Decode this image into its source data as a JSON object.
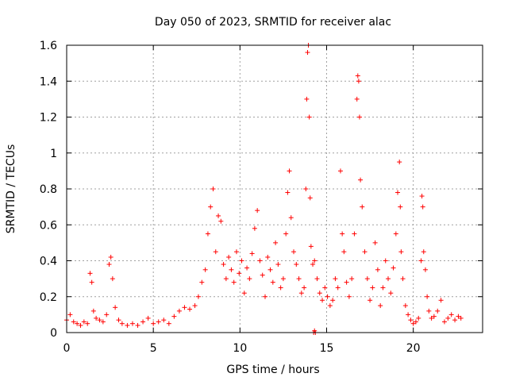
{
  "chart_data": {
    "type": "scatter",
    "title": "Day 050 of 2023, SRMTID for receiver alac",
    "xlabel": "GPS time / hours",
    "ylabel": "SRMTID / TECUs",
    "xlim": [
      0,
      24
    ],
    "ylim": [
      0,
      1.6
    ],
    "x_ticks": [
      0,
      5,
      10,
      15,
      20
    ],
    "x_tick_labels": [
      "0",
      "5",
      "10",
      "15",
      "20"
    ],
    "y_ticks": [
      0,
      0.2,
      0.4,
      0.6,
      0.8,
      1.0,
      1.2,
      1.4,
      1.6
    ],
    "y_tick_labels": [
      "0",
      "0.2",
      "0.4",
      "0.6",
      "0.8",
      "1",
      "1.2",
      "1.4",
      "1.6"
    ],
    "grid": true,
    "marker": "+",
    "marker_color": "#ff0000",
    "series": [
      {
        "name": "SRMTID",
        "x": [
          0.0,
          0.2,
          0.4,
          0.6,
          0.8,
          1.0,
          1.2,
          1.35,
          1.45,
          1.55,
          1.7,
          1.9,
          2.1,
          2.3,
          2.45,
          2.55,
          2.65,
          2.8,
          3.0,
          3.2,
          3.5,
          3.8,
          4.1,
          4.4,
          4.7,
          5.0,
          5.3,
          5.6,
          5.9,
          6.2,
          6.5,
          6.8,
          7.1,
          7.4,
          7.6,
          7.8,
          8.0,
          8.15,
          8.3,
          8.45,
          8.6,
          8.75,
          8.9,
          9.05,
          9.2,
          9.35,
          9.5,
          9.65,
          9.8,
          9.95,
          10.1,
          10.25,
          10.4,
          10.55,
          10.7,
          10.85,
          11.0,
          11.15,
          11.3,
          11.45,
          11.6,
          11.75,
          11.9,
          12.05,
          12.2,
          12.35,
          12.5,
          12.65,
          12.75,
          12.85,
          12.95,
          13.1,
          13.25,
          13.4,
          13.55,
          13.7,
          13.8,
          13.85,
          13.9,
          13.95,
          14.0,
          14.05,
          14.1,
          14.2,
          14.3,
          14.45,
          14.6,
          14.75,
          14.9,
          15.05,
          15.2,
          15.35,
          15.5,
          15.65,
          15.8,
          15.9,
          16.0,
          16.15,
          16.3,
          16.45,
          16.6,
          16.75,
          16.8,
          16.85,
          16.9,
          16.95,
          17.05,
          17.2,
          17.35,
          17.5,
          17.65,
          17.8,
          17.95,
          18.1,
          18.25,
          18.4,
          18.55,
          18.7,
          18.85,
          19.0,
          19.1,
          19.2,
          19.25,
          19.3,
          19.4,
          19.55,
          19.7,
          19.85,
          20.0,
          20.15,
          20.3,
          20.45,
          20.5,
          20.55,
          20.6,
          20.7,
          20.8,
          20.9,
          21.05,
          21.2,
          21.4,
          21.6,
          21.8,
          22.0,
          22.2,
          22.4,
          22.6,
          22.75,
          14.25,
          14.3,
          14.35
        ],
        "y": [
          0.07,
          0.1,
          0.06,
          0.05,
          0.04,
          0.06,
          0.05,
          0.33,
          0.28,
          0.12,
          0.08,
          0.07,
          0.06,
          0.1,
          0.38,
          0.42,
          0.3,
          0.14,
          0.07,
          0.05,
          0.04,
          0.05,
          0.04,
          0.06,
          0.08,
          0.05,
          0.06,
          0.07,
          0.05,
          0.09,
          0.12,
          0.14,
          0.13,
          0.15,
          0.2,
          0.28,
          0.35,
          0.55,
          0.7,
          0.8,
          0.45,
          0.65,
          0.62,
          0.38,
          0.3,
          0.42,
          0.35,
          0.28,
          0.45,
          0.33,
          0.4,
          0.22,
          0.36,
          0.3,
          0.44,
          0.58,
          0.68,
          0.4,
          0.32,
          0.2,
          0.42,
          0.35,
          0.28,
          0.5,
          0.38,
          0.25,
          0.3,
          0.55,
          0.78,
          0.9,
          0.64,
          0.45,
          0.38,
          0.3,
          0.22,
          0.25,
          0.8,
          1.3,
          1.56,
          1.6,
          1.2,
          0.75,
          0.48,
          0.38,
          0.4,
          0.3,
          0.22,
          0.18,
          0.25,
          0.2,
          0.15,
          0.18,
          0.3,
          0.25,
          0.9,
          0.55,
          0.45,
          0.28,
          0.2,
          0.3,
          0.55,
          1.3,
          1.43,
          1.4,
          1.2,
          0.85,
          0.7,
          0.45,
          0.3,
          0.18,
          0.25,
          0.5,
          0.35,
          0.15,
          0.25,
          0.4,
          0.3,
          0.22,
          0.36,
          0.55,
          0.78,
          0.95,
          0.7,
          0.45,
          0.3,
          0.15,
          0.1,
          0.07,
          0.05,
          0.06,
          0.08,
          0.4,
          0.76,
          0.7,
          0.45,
          0.35,
          0.2,
          0.12,
          0.08,
          0.09,
          0.12,
          0.18,
          0.06,
          0.08,
          0.1,
          0.07,
          0.09,
          0.08,
          0.0,
          0.01,
          0.0
        ]
      }
    ]
  }
}
